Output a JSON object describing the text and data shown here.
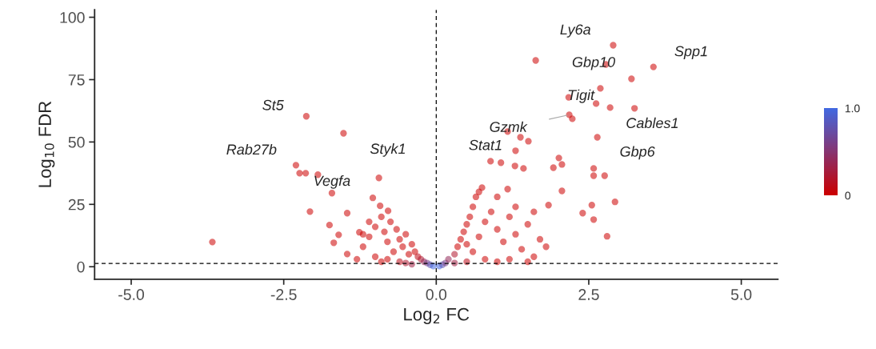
{
  "chart_data": {
    "type": "scatter",
    "xlabel": "Log$_{2}$ FC",
    "ylabel": "Log$_{10}$ FDR",
    "xlim": [
      -5.6,
      5.6
    ],
    "ylim": [
      -5,
      103
    ],
    "xticks": [
      {
        "value": -5,
        "label": "-5.0"
      },
      {
        "value": -2.5,
        "label": "-2.5"
      },
      {
        "value": 0,
        "label": "0.0"
      },
      {
        "value": 2.5,
        "label": "2.5"
      },
      {
        "value": 5,
        "label": "5.0"
      }
    ],
    "yticks": [
      0,
      25,
      50,
      75,
      100
    ],
    "grid": false,
    "marker": "circle",
    "legend": false,
    "clim": [
      0,
      1
    ],
    "cticks": [
      0,
      {
        "value": 1,
        "label": "1.0"
      }
    ],
    "ref_lines": [
      {
        "axis": "x",
        "value": 0,
        "line_style": "dashed",
        "color": "#000000"
      },
      {
        "axis": "y",
        "value": 1.3,
        "line_style": "dashed",
        "color": "#000000"
      }
    ],
    "series": [
      {
        "x": [
          -3.67,
          -2.13,
          -1.52,
          -2.3,
          -2.24,
          -2.14,
          -1.94,
          -1.71,
          -0.94,
          -2.07,
          -1.04,
          -0.92,
          -0.79,
          -1.46,
          -1.75,
          -1.68,
          -1.26,
          -1.6,
          -1.46,
          -1.2,
          -1.1,
          -1.0,
          -0.9,
          -0.85,
          -0.8,
          -0.75,
          -0.7,
          -0.65,
          -0.6,
          -0.55,
          -0.5,
          -0.45,
          -0.4,
          -0.35,
          -0.3,
          -0.25,
          -0.2,
          -0.15,
          -0.1,
          -0.05,
          -1.3,
          -1.0,
          -0.9,
          -0.8,
          -0.6,
          -0.5,
          -0.4,
          -1.1,
          -1.2,
          1.63,
          2.9,
          2.78,
          3.2,
          3.56,
          2.69,
          2.17,
          2.62,
          2.85,
          3.25,
          2.18,
          2.23,
          2.64,
          1.17,
          1.38,
          1.51,
          1.3,
          0.89,
          1.06,
          1.29,
          1.43,
          2.01,
          2.06,
          1.92,
          2.58,
          2.58,
          2.76,
          2.93,
          2.55,
          2.4,
          2.58,
          2.8,
          0.75,
          1.17,
          2.06,
          1.84,
          0.05,
          0.1,
          0.15,
          0.2,
          0.3,
          0.35,
          0.4,
          0.45,
          0.5,
          0.55,
          0.6,
          0.65,
          0.5,
          0.6,
          0.7,
          0.8,
          0.9,
          1.0,
          1.1,
          1.2,
          1.3,
          1.4,
          1.5,
          1.6,
          1.7,
          1.8,
          0.8,
          1.0,
          1.2,
          1.5,
          0.7,
          1.0,
          1.3,
          1.6,
          0.3,
          0.5
        ],
        "values": [
          9.9,
          60.3,
          53.5,
          40.7,
          37.5,
          37.5,
          36.9,
          29.5,
          35.6,
          22.1,
          27.6,
          24.4,
          22.4,
          21.5,
          16.7,
          9.6,
          13.8,
          12.8,
          5.1,
          8,
          12,
          16,
          20,
          14,
          10,
          18,
          6,
          15,
          11,
          8,
          13,
          5,
          9,
          6,
          4,
          3,
          2,
          1.5,
          0.8,
          0.3,
          3,
          4,
          2,
          3,
          2,
          1.5,
          1,
          18,
          13,
          82.7,
          88.8,
          81.1,
          75.3,
          80.1,
          71.5,
          67.9,
          65.4,
          63.8,
          63.5,
          60.9,
          59.3,
          51.9,
          54.2,
          51.9,
          50.3,
          46.5,
          42.3,
          41.7,
          40.4,
          39.4,
          43.6,
          41.0,
          39.7,
          39.4,
          36.5,
          36.5,
          26.0,
          24.7,
          21.5,
          18.9,
          12.2,
          31.7,
          31.1,
          30.4,
          24.7,
          0.3,
          0.8,
          1.5,
          3,
          5,
          8,
          11,
          14,
          17,
          20,
          24,
          28,
          9,
          6,
          12,
          18,
          22,
          15,
          10,
          20,
          13,
          7,
          17,
          4,
          11,
          8,
          3,
          2,
          3,
          2,
          30,
          28,
          24,
          22,
          1.5,
          2
        ],
        "cvalues": [
          0,
          0,
          0,
          0,
          0,
          0,
          0,
          0,
          0,
          0,
          0,
          0,
          0,
          0,
          0,
          0,
          0,
          0,
          0,
          0,
          0,
          0,
          0,
          0,
          0,
          0,
          0,
          0,
          0,
          0,
          0,
          0,
          0,
          0,
          0.1,
          0.2,
          0.4,
          0.6,
          0.8,
          1,
          0,
          0,
          0,
          0,
          0.1,
          0.2,
          0.3,
          0,
          0,
          0,
          0,
          0,
          0,
          0,
          0,
          0,
          0,
          0,
          0,
          0,
          0,
          0,
          0,
          0,
          0,
          0,
          0,
          0,
          0,
          0,
          0,
          0,
          0,
          0,
          0,
          0,
          0,
          0,
          0,
          0,
          0,
          0,
          0,
          0,
          0,
          1,
          0.8,
          0.6,
          0.4,
          0.2,
          0,
          0,
          0,
          0,
          0,
          0,
          0,
          0,
          0,
          0,
          0,
          0,
          0,
          0,
          0,
          0,
          0,
          0,
          0,
          0,
          0,
          0,
          0,
          0,
          0,
          0,
          0,
          0,
          0,
          0.3,
          0.1
        ]
      }
    ],
    "annotations": [
      {
        "text": "St5",
        "x": -2.13,
        "y": 60.3
      },
      {
        "text": "Rab27b",
        "x": -2.3,
        "y": 40.7
      },
      {
        "text": "Styk1",
        "x": -1.52,
        "y": 53.5
      },
      {
        "text": "Vegfa",
        "x": -1.71,
        "y": 29.5
      },
      {
        "text": "Ly6a",
        "x": 2.9,
        "y": 88.8
      },
      {
        "text": "Gbp10",
        "x": 2.78,
        "y": 81.1
      },
      {
        "text": "Spp1",
        "x": 3.56,
        "y": 80.1
      },
      {
        "text": "Tigit",
        "x": 2.17,
        "y": 67.9
      },
      {
        "text": "Gzmk",
        "x": 2.18,
        "y": 60.9
      },
      {
        "text": "Cables1",
        "x": 2.85,
        "y": 63.8
      },
      {
        "text": "Gbp6",
        "x": 2.64,
        "y": 51.9
      },
      {
        "text": "Stat1",
        "x": 1.3,
        "y": 46.5
      }
    ]
  }
}
